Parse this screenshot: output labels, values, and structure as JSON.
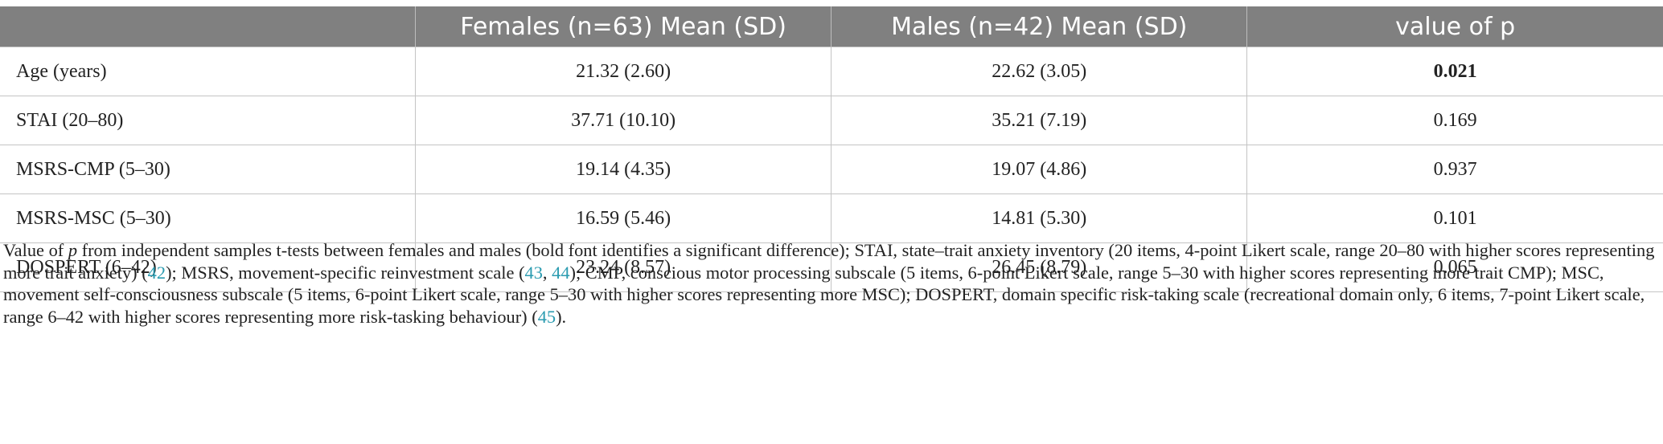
{
  "table": {
    "header": [
      "",
      "Females (n=63) Mean (SD)",
      "Males (n=42) Mean (SD)",
      "value of p"
    ],
    "rows": [
      [
        "Age (years)",
        "21.32 (2.60)",
        "22.62 (3.05)",
        "0.021"
      ],
      [
        "STAI (20–80)",
        "37.71 (10.10)",
        "35.21 (7.19)",
        "0.169"
      ],
      [
        "MSRS-CMP (5–30)",
        "19.14 (4.35)",
        "19.07 (4.86)",
        "0.937"
      ],
      [
        "MSRS-MSC (5–30)",
        "16.59 (5.46)",
        "14.81 (5.30)",
        "0.101"
      ],
      [
        "DOSPERT (6–42)",
        "23.24 (8.57)",
        "26.45 (8.79)",
        "0.065"
      ]
    ]
  },
  "footnote": [
    "Value of ",
    "p",
    " from independent samples t-tests between females and males (bold font identifies a significant difference); STAI, state–trait anxiety inventory (20 items, 4-point Likert scale, range 20–80 with higher scores representing more trait anxiety) (",
    "42",
    "); MSRS, movement-specific reinvestment scale (",
    "43",
    ", ",
    "44",
    "); CMP, conscious motor processing subscale (5 items, 6-point Likert scale, range 5–30 with higher scores representing more trait CMP); MSC, movement self-consciousness subscale (5 items, 6-point Likert scale, range 5–30 with higher scores representing more MSC); DOSPERT, domain specific risk-taking scale (recreational domain only, 6 items, 7-point Likert scale, range 6–42 with higher scores representing more risk-tasking behaviour) (",
    "45",
    ")."
  ]
}
